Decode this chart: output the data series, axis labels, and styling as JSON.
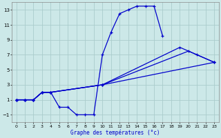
{
  "bg_color": "#cce8e8",
  "grid_color": "#aacccc",
  "line_color": "#0000cc",
  "xlabel": "Graphe des températures (°c)",
  "xlim": [
    -0.5,
    23.5
  ],
  "ylim": [
    -2,
    14
  ],
  "yticks": [
    -1,
    1,
    3,
    5,
    7,
    9,
    11,
    13
  ],
  "xticks": [
    0,
    1,
    2,
    3,
    4,
    5,
    6,
    7,
    8,
    9,
    10,
    11,
    12,
    13,
    14,
    15,
    16,
    17,
    18,
    19,
    20,
    21,
    22,
    23
  ],
  "series": {
    "s1_x": [
      0,
      1,
      2,
      3,
      4,
      5,
      6,
      7,
      8,
      9,
      10,
      11,
      12,
      13,
      14,
      15,
      16,
      17
    ],
    "s1_y": [
      1,
      1,
      1,
      2,
      2,
      0,
      0,
      -1,
      -1,
      -1,
      7,
      10,
      12.5,
      13,
      13.5,
      13.5,
      13.5,
      9.5
    ],
    "s2_x": [
      0,
      1,
      2,
      3,
      4,
      10,
      23
    ],
    "s2_y": [
      1,
      1,
      1,
      2,
      2,
      3,
      6
    ],
    "s3_x": [
      0,
      1,
      2,
      3,
      4,
      10,
      19,
      23
    ],
    "s3_y": [
      1,
      1,
      1,
      2,
      2,
      3,
      8,
      6
    ],
    "s4_x": [
      0,
      1,
      2,
      3,
      4,
      10,
      20,
      21,
      23
    ],
    "s4_y": [
      1,
      1,
      1,
      2,
      2,
      3,
      7.5,
      7,
      6
    ]
  }
}
